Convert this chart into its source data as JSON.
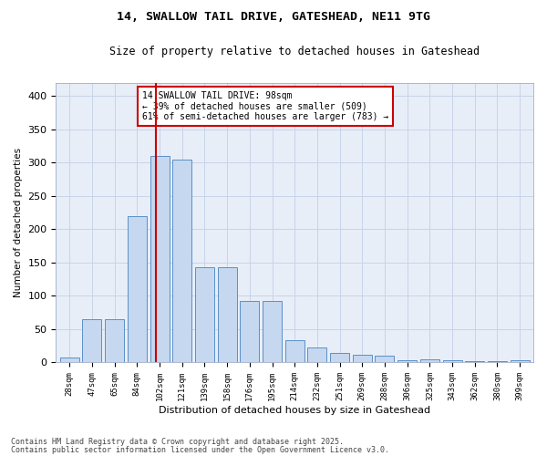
{
  "title1": "14, SWALLOW TAIL DRIVE, GATESHEAD, NE11 9TG",
  "title2": "Size of property relative to detached houses in Gateshead",
  "xlabel": "Distribution of detached houses by size in Gateshead",
  "ylabel": "Number of detached properties",
  "categories": [
    "28sqm",
    "47sqm",
    "65sqm",
    "84sqm",
    "102sqm",
    "121sqm",
    "139sqm",
    "158sqm",
    "176sqm",
    "195sqm",
    "214sqm",
    "232sqm",
    "251sqm",
    "269sqm",
    "288sqm",
    "306sqm",
    "325sqm",
    "343sqm",
    "362sqm",
    "380sqm",
    "399sqm"
  ],
  "values": [
    8,
    65,
    65,
    220,
    310,
    305,
    143,
    143,
    92,
    92,
    33,
    22,
    14,
    11,
    10,
    4,
    5,
    3,
    2,
    2,
    4
  ],
  "bar_color": "#c5d8ef",
  "bar_edge_color": "#5b8fc9",
  "grid_color": "#c8d4e8",
  "background_color": "#e8eef8",
  "vline_color": "#cc0000",
  "annotation_text": "14 SWALLOW TAIL DRIVE: 98sqm\n← 39% of detached houses are smaller (509)\n61% of semi-detached houses are larger (783) →",
  "annotation_box_color": "#ffffff",
  "annotation_box_edge": "#cc0000",
  "footer1": "Contains HM Land Registry data © Crown copyright and database right 2025.",
  "footer2": "Contains public sector information licensed under the Open Government Licence v3.0.",
  "ylim": [
    0,
    420
  ],
  "yticks": [
    0,
    50,
    100,
    150,
    200,
    250,
    300,
    350,
    400
  ]
}
